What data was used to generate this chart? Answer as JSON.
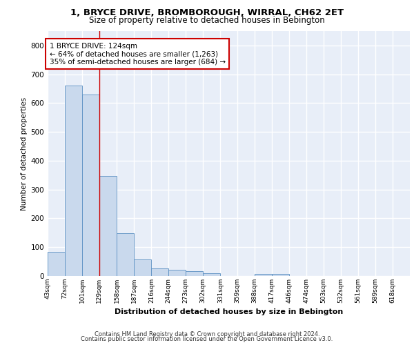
{
  "title1": "1, BRYCE DRIVE, BROMBOROUGH, WIRRAL, CH62 2ET",
  "title2": "Size of property relative to detached houses in Bebington",
  "xlabel": "Distribution of detached houses by size in Bebington",
  "ylabel": "Number of detached properties",
  "bin_labels": [
    "43sqm",
    "72sqm",
    "101sqm",
    "129sqm",
    "158sqm",
    "187sqm",
    "216sqm",
    "244sqm",
    "273sqm",
    "302sqm",
    "331sqm",
    "359sqm",
    "388sqm",
    "417sqm",
    "446sqm",
    "474sqm",
    "503sqm",
    "532sqm",
    "561sqm",
    "589sqm",
    "618sqm"
  ],
  "bin_edges": [
    43,
    72,
    101,
    129,
    158,
    187,
    216,
    244,
    273,
    302,
    331,
    359,
    388,
    417,
    446,
    474,
    503,
    532,
    561,
    589,
    618
  ],
  "bar_heights": [
    83,
    662,
    630,
    347,
    148,
    58,
    26,
    22,
    17,
    9,
    0,
    0,
    8,
    8,
    0,
    0,
    0,
    0,
    0,
    0,
    0
  ],
  "bar_color": "#c9d9ed",
  "bar_edge_color": "#5a8fc2",
  "background_color": "#e8eef8",
  "grid_color": "#ffffff",
  "red_line_x": 129,
  "annotation_text": "1 BRYCE DRIVE: 124sqm\n← 64% of detached houses are smaller (1,263)\n35% of semi-detached houses are larger (684) →",
  "annotation_box_color": "#ffffff",
  "annotation_box_edge": "#cc0000",
  "ylim": [
    0,
    850
  ],
  "yticks": [
    0,
    100,
    200,
    300,
    400,
    500,
    600,
    700,
    800
  ],
  "footer1": "Contains HM Land Registry data © Crown copyright and database right 2024.",
  "footer2": "Contains public sector information licensed under the Open Government Licence v3.0."
}
